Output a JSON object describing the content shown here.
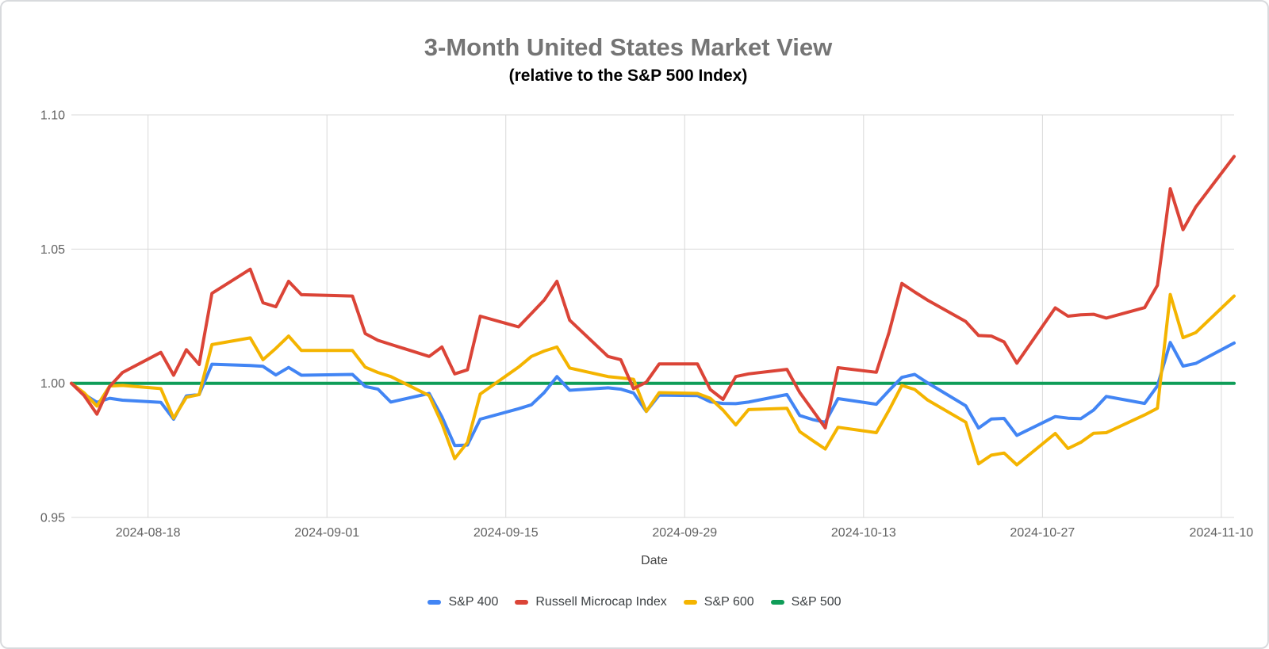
{
  "header": {
    "title": "3-Month United States Market View",
    "subtitle": "(relative to the S&P 500 Index)"
  },
  "chart_data": {
    "type": "line",
    "title": "3-Month United States Market View",
    "subtitle": "(relative to the S&P 500 Index)",
    "xlabel": "Date",
    "ylabel": "",
    "ylim": [
      0.95,
      1.1
    ],
    "x_range": [
      "2024-08-12",
      "2024-11-11"
    ],
    "grid": true,
    "legend_position": "bottom",
    "y_ticks": [
      {
        "label": "1.10",
        "value": 1.1
      },
      {
        "label": "1.05",
        "value": 1.05
      },
      {
        "label": "1.00",
        "value": 1.0
      },
      {
        "label": "0.95",
        "value": 0.95
      }
    ],
    "x_ticks": [
      {
        "label": "2024-08-18",
        "date": "2024-08-18"
      },
      {
        "label": "2024-09-01",
        "date": "2024-09-01"
      },
      {
        "label": "2024-09-15",
        "date": "2024-09-15"
      },
      {
        "label": "2024-09-29",
        "date": "2024-09-29"
      },
      {
        "label": "2024-10-13",
        "date": "2024-10-13"
      },
      {
        "label": "2024-10-27",
        "date": "2024-10-27"
      },
      {
        "label": "2024-11-10",
        "date": "2024-11-10"
      }
    ],
    "dates": [
      "2024-08-12",
      "2024-08-13",
      "2024-08-14",
      "2024-08-15",
      "2024-08-16",
      "2024-08-19",
      "2024-08-20",
      "2024-08-21",
      "2024-08-22",
      "2024-08-23",
      "2024-08-26",
      "2024-08-27",
      "2024-08-28",
      "2024-08-29",
      "2024-08-30",
      "2024-09-03",
      "2024-09-04",
      "2024-09-05",
      "2024-09-06",
      "2024-09-09",
      "2024-09-10",
      "2024-09-11",
      "2024-09-12",
      "2024-09-13",
      "2024-09-16",
      "2024-09-17",
      "2024-09-18",
      "2024-09-19",
      "2024-09-20",
      "2024-09-23",
      "2024-09-24",
      "2024-09-25",
      "2024-09-26",
      "2024-09-27",
      "2024-09-30",
      "2024-10-01",
      "2024-10-02",
      "2024-10-03",
      "2024-10-04",
      "2024-10-07",
      "2024-10-08",
      "2024-10-09",
      "2024-10-10",
      "2024-10-11",
      "2024-10-14",
      "2024-10-15",
      "2024-10-16",
      "2024-10-17",
      "2024-10-18",
      "2024-10-21",
      "2024-10-22",
      "2024-10-23",
      "2024-10-24",
      "2024-10-25",
      "2024-10-28",
      "2024-10-29",
      "2024-10-30",
      "2024-10-31",
      "2024-11-01",
      "2024-11-04",
      "2024-11-05",
      "2024-11-06",
      "2024-11-07",
      "2024-11-08",
      "2024-11-11"
    ],
    "series": [
      {
        "name": "S&P 400",
        "color": "#4285F4",
        "values": [
          1.0,
          0.9959,
          0.9929,
          0.9944,
          0.9937,
          0.9929,
          0.9866,
          0.9953,
          0.9958,
          1.0071,
          1.0066,
          1.0063,
          1.0031,
          1.0059,
          1.003,
          1.0033,
          0.9988,
          0.9978,
          0.993,
          0.9962,
          0.9875,
          0.9768,
          0.977,
          0.9866,
          0.9905,
          0.992,
          0.9965,
          1.0025,
          0.9974,
          0.9983,
          0.9978,
          0.9964,
          0.9895,
          0.9956,
          0.9954,
          0.9931,
          0.9925,
          0.9924,
          0.993,
          0.9958,
          0.988,
          0.9865,
          0.9855,
          0.9943,
          0.9922,
          0.9973,
          1.0022,
          1.0033,
          1.0002,
          0.9916,
          0.9833,
          0.9867,
          0.9869,
          0.9806,
          0.9876,
          0.987,
          0.9868,
          0.99,
          0.9951,
          0.9925,
          0.999,
          1.0152,
          1.0064,
          1.0074,
          1.015
        ]
      },
      {
        "name": "Russell Microcap Index",
        "color": "#DB4437",
        "values": [
          1.0,
          0.9954,
          0.9885,
          0.9988,
          1.004,
          1.0115,
          1.003,
          1.0125,
          1.007,
          1.0335,
          1.0425,
          1.03,
          1.0285,
          1.038,
          1.033,
          1.0325,
          1.0185,
          1.016,
          1.0145,
          1.01,
          1.0135,
          1.0035,
          1.005,
          1.025,
          1.021,
          1.026,
          1.031,
          1.038,
          1.0235,
          1.01,
          1.0088,
          0.998,
          1.0004,
          1.0072,
          1.0072,
          0.9977,
          0.994,
          1.0025,
          1.0035,
          1.0052,
          0.9966,
          0.99,
          0.9834,
          1.0058,
          1.0041,
          1.019,
          1.0372,
          1.034,
          1.031,
          1.023,
          1.0178,
          1.0176,
          1.0154,
          1.0075,
          1.0281,
          1.025,
          1.0255,
          1.0257,
          1.0243,
          1.0282,
          1.0365,
          1.0725,
          1.0572,
          1.0657,
          1.0845
        ]
      },
      {
        "name": "S&P 600",
        "color": "#F4B400",
        "values": [
          1.0,
          0.9964,
          0.9915,
          0.999,
          0.9992,
          0.998,
          0.987,
          0.9948,
          0.9958,
          1.0144,
          1.0169,
          1.0088,
          1.013,
          1.0176,
          1.0122,
          1.0122,
          1.006,
          1.004,
          1.0025,
          0.9954,
          0.985,
          0.9719,
          0.978,
          0.996,
          1.006,
          1.01,
          1.012,
          1.0135,
          1.0057,
          1.0025,
          1.002,
          1.0015,
          0.9895,
          0.9965,
          0.9962,
          0.9944,
          0.99,
          0.9845,
          0.9902,
          0.9907,
          0.982,
          0.9787,
          0.9755,
          0.9836,
          0.9816,
          0.99,
          0.9992,
          0.9977,
          0.9938,
          0.9855,
          0.97,
          0.9732,
          0.974,
          0.9696,
          0.9813,
          0.9757,
          0.978,
          0.9814,
          0.9816,
          0.9882,
          0.9907,
          1.0331,
          1.017,
          1.0189,
          1.0325
        ]
      },
      {
        "name": "S&P 500",
        "color": "#0F9D58",
        "values": [
          1.0,
          1.0,
          1.0,
          1.0,
          1.0,
          1.0,
          1.0,
          1.0,
          1.0,
          1.0,
          1.0,
          1.0,
          1.0,
          1.0,
          1.0,
          1.0,
          1.0,
          1.0,
          1.0,
          1.0,
          1.0,
          1.0,
          1.0,
          1.0,
          1.0,
          1.0,
          1.0,
          1.0,
          1.0,
          1.0,
          1.0,
          1.0,
          1.0,
          1.0,
          1.0,
          1.0,
          1.0,
          1.0,
          1.0,
          1.0,
          1.0,
          1.0,
          1.0,
          1.0,
          1.0,
          1.0,
          1.0,
          1.0,
          1.0,
          1.0,
          1.0,
          1.0,
          1.0,
          1.0,
          1.0,
          1.0,
          1.0,
          1.0,
          1.0,
          1.0,
          1.0,
          1.0,
          1.0,
          1.0,
          1.0
        ]
      }
    ],
    "draw_order": [
      3,
      0,
      2,
      1
    ],
    "legend_order": [
      0,
      1,
      2,
      3
    ]
  }
}
